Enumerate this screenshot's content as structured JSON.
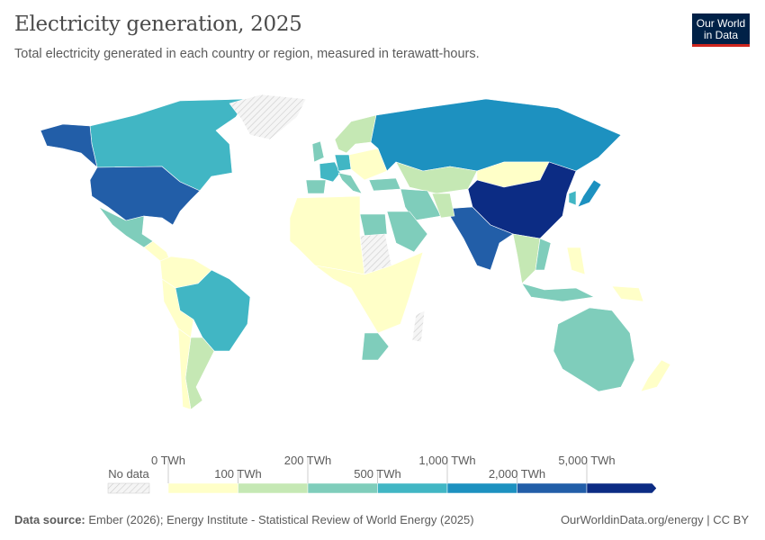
{
  "header": {
    "title": "Electricity generation, 2025",
    "subtitle": "Total electricity generated in each country or region, measured in terawatt-hours.",
    "logo_text": "Our World in Data"
  },
  "chart_data": {
    "type": "choropleth-map",
    "title": "Electricity generation, 2025",
    "unit": "TWh",
    "legend": {
      "no_data_label": "No data",
      "bins": [
        {
          "from": "0 TWh",
          "to": "100 TWh",
          "color": "#ffffc8"
        },
        {
          "from": "100 TWh",
          "to": "200 TWh",
          "color": "#c5e8b4"
        },
        {
          "from": "200 TWh",
          "to": "500 TWh",
          "color": "#7fcdbb"
        },
        {
          "from": "500 TWh",
          "to": "1,000 TWh",
          "color": "#41b6c4"
        },
        {
          "from": "1,000 TWh",
          "to": "2,000 TWh",
          "color": "#1d91c0"
        },
        {
          "from": "2,000 TWh",
          "to": "5,000 TWh",
          "color": "#225ea8"
        },
        {
          "from": "5,000 TWh",
          "to": "",
          "color": "#0c2c84"
        }
      ],
      "tick_labels_top": [
        "0 TWh",
        "200 TWh",
        "1,000 TWh",
        "5,000 TWh"
      ],
      "tick_labels_bottom": [
        "100 TWh",
        "500 TWh",
        "2,000 TWh"
      ]
    },
    "regions": [
      {
        "name": "Canada",
        "bin": 3
      },
      {
        "name": "United States",
        "bin": 5
      },
      {
        "name": "Alaska",
        "bin": 5
      },
      {
        "name": "Greenland",
        "bin": null
      },
      {
        "name": "Mexico",
        "bin": 2
      },
      {
        "name": "Central America",
        "bin": 0
      },
      {
        "name": "Colombia/Venezuela",
        "bin": 0
      },
      {
        "name": "Peru/Bolivia",
        "bin": 0
      },
      {
        "name": "Brazil",
        "bin": 3
      },
      {
        "name": "Argentina",
        "bin": 1
      },
      {
        "name": "Chile",
        "bin": 0
      },
      {
        "name": "United Kingdom",
        "bin": 2
      },
      {
        "name": "France",
        "bin": 3
      },
      {
        "name": "Spain",
        "bin": 2
      },
      {
        "name": "Germany",
        "bin": 3
      },
      {
        "name": "Scandinavia",
        "bin": 1
      },
      {
        "name": "Eastern Europe",
        "bin": 0
      },
      {
        "name": "Italy",
        "bin": 2
      },
      {
        "name": "Turkey",
        "bin": 2
      },
      {
        "name": "Russia",
        "bin": 4
      },
      {
        "name": "Kazakhstan",
        "bin": 1
      },
      {
        "name": "Mongolia",
        "bin": 0
      },
      {
        "name": "China",
        "bin": 6
      },
      {
        "name": "Japan",
        "bin": 4
      },
      {
        "name": "South Korea",
        "bin": 3
      },
      {
        "name": "India",
        "bin": 5
      },
      {
        "name": "Iran",
        "bin": 2
      },
      {
        "name": "Saudi Arabia",
        "bin": 2
      },
      {
        "name": "Pakistan",
        "bin": 1
      },
      {
        "name": "Egypt",
        "bin": 2
      },
      {
        "name": "Western Sahara",
        "bin": null
      },
      {
        "name": "Sudan",
        "bin": null
      },
      {
        "name": "North Africa",
        "bin": 0
      },
      {
        "name": "Central Africa",
        "bin": 0
      },
      {
        "name": "South Africa",
        "bin": 2
      },
      {
        "name": "Madagascar",
        "bin": null
      },
      {
        "name": "Southeast Asia",
        "bin": 1
      },
      {
        "name": "Vietnam",
        "bin": 2
      },
      {
        "name": "Indonesia",
        "bin": 2
      },
      {
        "name": "Philippines",
        "bin": 0
      },
      {
        "name": "Australia",
        "bin": 2
      },
      {
        "name": "New Zealand",
        "bin": 0
      },
      {
        "name": "Papua New Guinea",
        "bin": 0
      }
    ]
  },
  "footer": {
    "source_label": "Data source:",
    "source_text": "Ember (2026); Energy Institute - Statistical Review of World Energy (2025)",
    "right": "OurWorldinData.org/energy | CC BY"
  }
}
